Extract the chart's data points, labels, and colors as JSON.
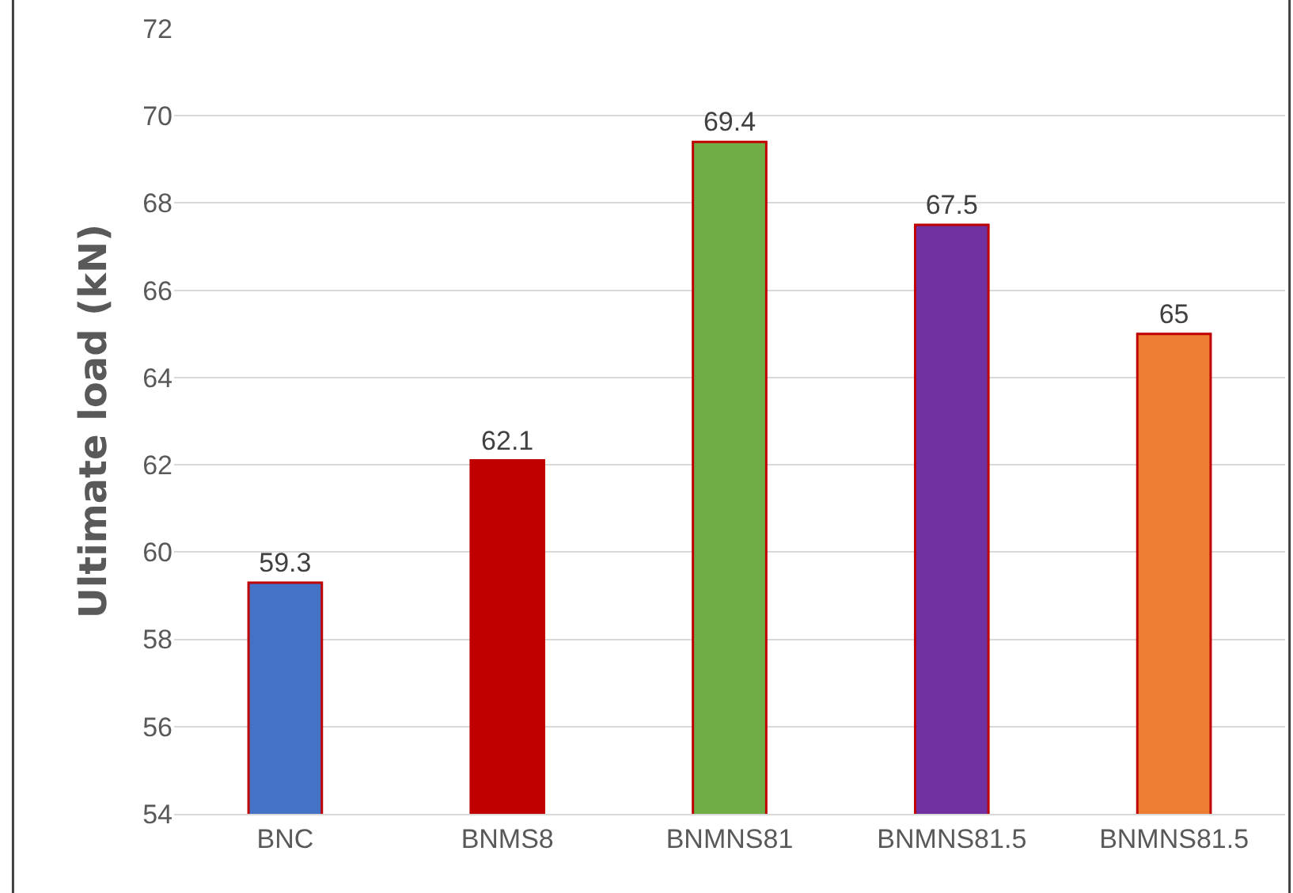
{
  "chart_data": {
    "type": "bar",
    "ylabel": "Ultimate load (kN)",
    "categories": [
      "BNC",
      "BNMS8",
      "BNMNS81",
      "BNMNS81.5",
      "BNMNS81.5"
    ],
    "values": [
      59.3,
      62.1,
      69.4,
      67.5,
      65
    ],
    "colors": [
      "#4472c4",
      "#c00000",
      "#70ad47",
      "#7030a0",
      "#ed7d31"
    ],
    "ylim": [
      54,
      72
    ],
    "yticks": [
      54,
      56,
      58,
      60,
      62,
      64,
      66,
      68,
      70,
      72
    ],
    "grid": "y",
    "data_labels": true
  }
}
